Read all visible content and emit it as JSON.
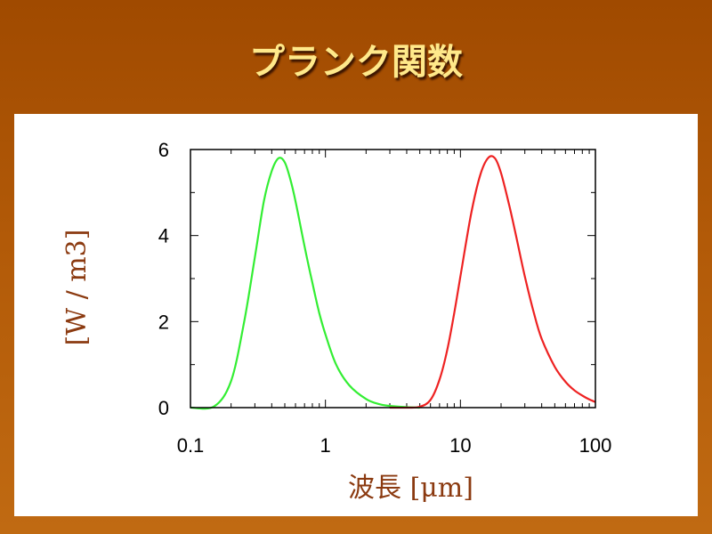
{
  "slide": {
    "title": "プランク関数"
  },
  "chart_data": {
    "type": "line",
    "x_scale": "log",
    "xlim": [
      0.1,
      100
    ],
    "ylim": [
      0,
      6
    ],
    "x_ticks": [
      0.1,
      1,
      10,
      100
    ],
    "x_tick_labels": [
      "0.1",
      "1",
      "10",
      "100"
    ],
    "y_ticks": [
      0,
      2,
      4,
      6
    ],
    "y_tick_labels": [
      "0",
      "2",
      "4",
      "6"
    ],
    "xlabel": "波長 [μm]",
    "ylabel": "[W / m3]",
    "grid": false,
    "series": [
      {
        "color": "#33ee33",
        "x": [
          0.1,
          0.15,
          0.2,
          0.25,
          0.3,
          0.35,
          0.4,
          0.45,
          0.5,
          0.55,
          0.6,
          0.7,
          0.8,
          0.9,
          1,
          1.2,
          1.5,
          2,
          2.5,
          3,
          4,
          5
        ],
        "y": [
          0,
          0.03,
          0.62,
          2.0,
          3.5,
          4.8,
          5.5,
          5.8,
          5.7,
          5.3,
          4.8,
          3.75,
          2.9,
          2.2,
          1.7,
          1.0,
          0.52,
          0.2,
          0.08,
          0.04,
          0.01,
          0
        ]
      },
      {
        "color": "#ee2222",
        "x": [
          3,
          4,
          5,
          6,
          7,
          8,
          9,
          10,
          12,
          14,
          16,
          18,
          20,
          23,
          26,
          30,
          35,
          40,
          50,
          60,
          70,
          80,
          90,
          100
        ],
        "y": [
          0,
          0,
          0.02,
          0.18,
          0.65,
          1.35,
          2.2,
          3.05,
          4.5,
          5.4,
          5.8,
          5.8,
          5.45,
          4.7,
          3.95,
          3.05,
          2.2,
          1.6,
          0.95,
          0.6,
          0.4,
          0.28,
          0.19,
          0.13
        ]
      }
    ]
  }
}
